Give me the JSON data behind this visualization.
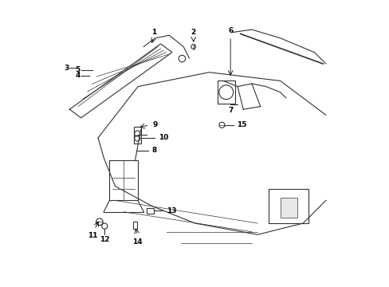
{
  "background_color": "#ffffff",
  "line_color": "#333333",
  "fig_width": 4.89,
  "fig_height": 3.6,
  "dpi": 100
}
